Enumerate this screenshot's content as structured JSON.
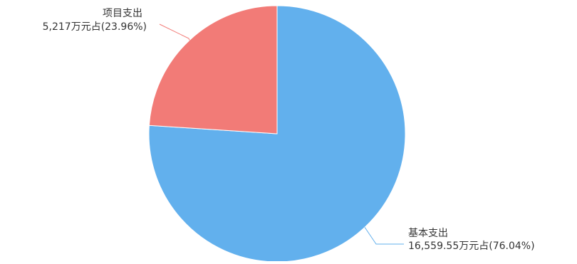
{
  "chart_data": {
    "type": "pie",
    "slices": [
      {
        "name": "基本支出",
        "value": 16559.55,
        "percent": 76.04,
        "value_label": "16,559.55万元占(76.04%)",
        "color": "#62b0ed"
      },
      {
        "name": "项目支出",
        "value": 5217,
        "percent": 23.96,
        "value_label": "5,217万元占(23.96%)",
        "color": "#f27b77"
      }
    ]
  }
}
